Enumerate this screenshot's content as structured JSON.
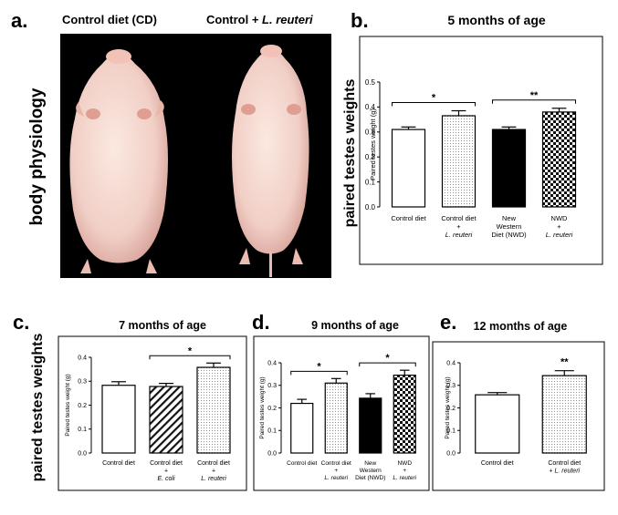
{
  "panel_a": {
    "letter": "a.",
    "title_left": "Control diet (CD)",
    "title_right_prefix": "Control + ",
    "title_right_italic": "L. reuteri",
    "side_label": "body physiology"
  },
  "panels": {
    "b": {
      "letter": "b."
    },
    "c": {
      "letter": "c."
    },
    "d": {
      "letter": "d."
    },
    "e": {
      "letter": "e."
    }
  },
  "y_side_label": "paired testes weights",
  "chart_data": [
    {
      "id": "b",
      "type": "bar",
      "title": "5 months of age",
      "ylabel": "Paired testes weight (g)",
      "ylim": [
        0,
        0.5
      ],
      "yticks": [
        "0.0",
        "0.1",
        "0.2",
        "0.3",
        "0.4",
        "0.5"
      ],
      "categories": [
        [
          "Control diet"
        ],
        [
          "Control diet",
          "+",
          "L. reuteri"
        ],
        [
          "New",
          "Western",
          "Diet (NWD)"
        ],
        [
          "NWD",
          "+",
          "L. reuteri"
        ]
      ],
      "values": [
        0.31,
        0.365,
        0.31,
        0.38
      ],
      "errors": [
        0.01,
        0.02,
        0.01,
        0.015
      ],
      "fills": [
        "white",
        "dots",
        "black",
        "checker"
      ],
      "significance": [
        {
          "from": 0,
          "to": 1,
          "label": "*"
        },
        {
          "from": 2,
          "to": 3,
          "label": "**"
        }
      ]
    },
    {
      "id": "c",
      "type": "bar",
      "title": "7 months of age",
      "ylabel": "Paired testes weight (g)",
      "ylim": [
        0,
        0.4
      ],
      "yticks": [
        "0.0",
        "0.1",
        "0.2",
        "0.3",
        "0.4"
      ],
      "categories": [
        [
          "Control diet"
        ],
        [
          "Control diet",
          "+",
          "E. coli"
        ],
        [
          "Control diet",
          "+",
          "L. reuteri"
        ]
      ],
      "values": [
        0.283,
        0.278,
        0.358
      ],
      "errors": [
        0.015,
        0.013,
        0.018
      ],
      "fills": [
        "white",
        "hatch",
        "dots"
      ],
      "significance": [
        {
          "from": 1,
          "to": 2,
          "label": "*"
        }
      ]
    },
    {
      "id": "d",
      "type": "bar",
      "title": "9 months of age",
      "ylabel": "Paired testes weight (g)",
      "ylim": [
        0,
        0.4
      ],
      "yticks": [
        "0.0",
        "0.1",
        "0.2",
        "0.3",
        "0.4"
      ],
      "categories": [
        [
          "Control diet"
        ],
        [
          "Control diet",
          "+",
          "L. reuteri"
        ],
        [
          "New",
          "Western",
          "Diet (NWD)"
        ],
        [
          "NWD",
          "+",
          "L. reuteri"
        ]
      ],
      "values": [
        0.22,
        0.31,
        0.243,
        0.345
      ],
      "errors": [
        0.018,
        0.02,
        0.02,
        0.022
      ],
      "fills": [
        "white",
        "dots",
        "black",
        "checker"
      ],
      "significance": [
        {
          "from": 0,
          "to": 1,
          "label": "*"
        },
        {
          "from": 2,
          "to": 3,
          "label": "*"
        }
      ]
    },
    {
      "id": "e",
      "type": "bar",
      "title": "12 months of age",
      "ylabel": "Paired testes weight (g)",
      "ylim": [
        0,
        0.4
      ],
      "yticks": [
        "0.0",
        "0.1",
        "0.2",
        "0.3",
        "0.4"
      ],
      "categories": [
        [
          "Control diet"
        ],
        [
          "Control diet",
          "+ L. reuteri"
        ]
      ],
      "values": [
        0.258,
        0.343
      ],
      "errors": [
        0.01,
        0.022
      ],
      "fills": [
        "white",
        "dots"
      ],
      "significance": [
        {
          "from": 1,
          "to": 1,
          "label": "**",
          "bracket": false
        }
      ]
    }
  ]
}
